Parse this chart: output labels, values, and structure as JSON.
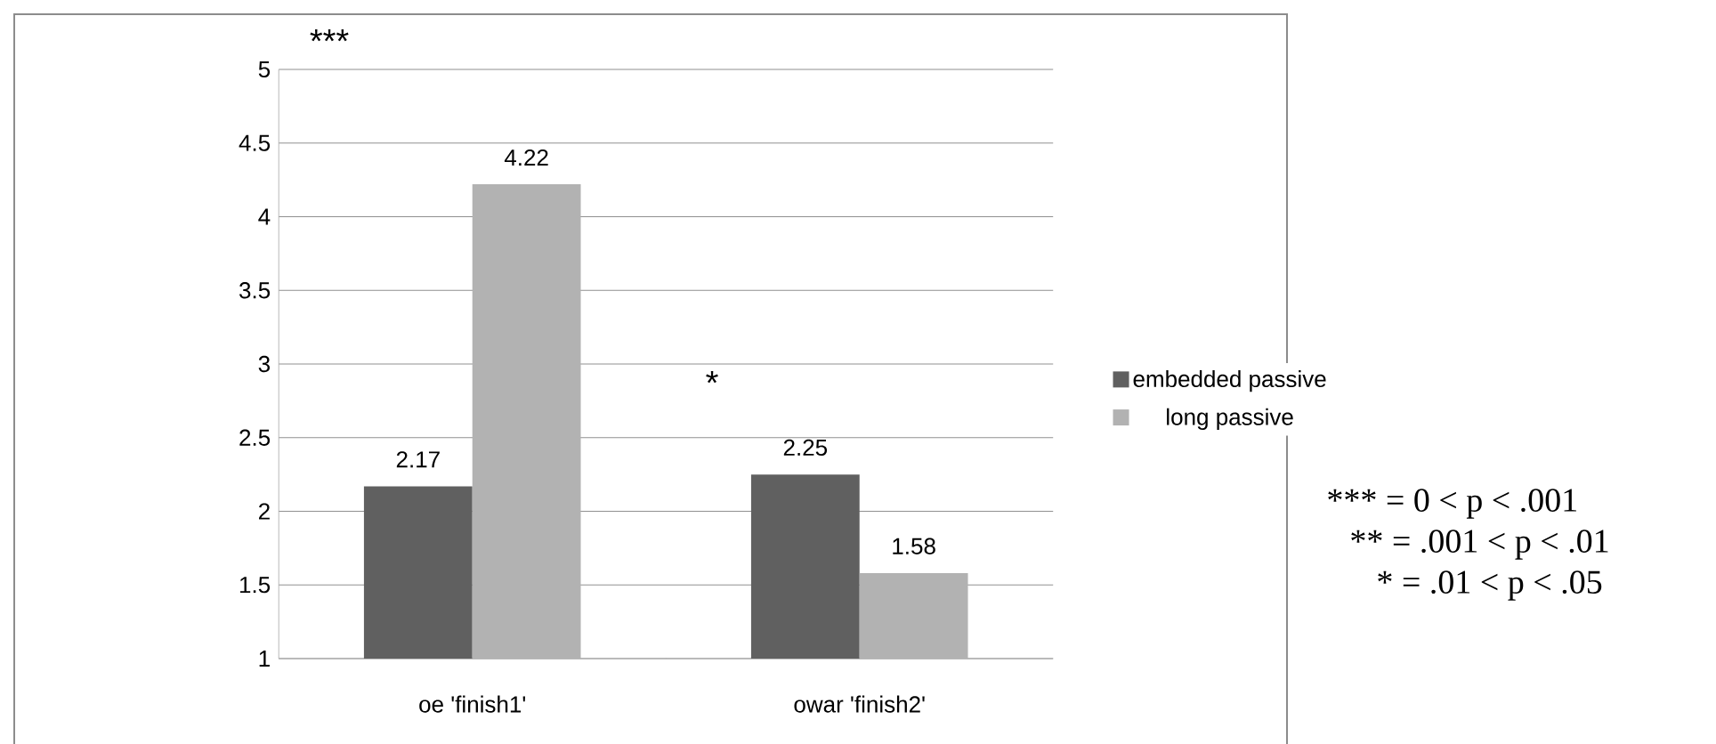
{
  "chart_data": {
    "type": "bar",
    "categories": [
      "oe 'finish1'",
      "owar 'finish2'"
    ],
    "series": [
      {
        "name": "embedded passive",
        "color": "#606060",
        "values": [
          2.17,
          2.25
        ]
      },
      {
        "name": "long passive",
        "color": "#b2b2b2",
        "values": [
          4.22,
          1.58
        ]
      }
    ],
    "ylim": [
      1,
      5
    ],
    "yticks": [
      1,
      1.5,
      2,
      2.5,
      3,
      3.5,
      4,
      4.5,
      5
    ],
    "grid": "y",
    "legend": "right",
    "data_labels": true,
    "annotations": [
      "***",
      "*",
      "*** = 0 < p < .001",
      "** = .001 < p < .01",
      "* = .01 < p < .05"
    ]
  }
}
